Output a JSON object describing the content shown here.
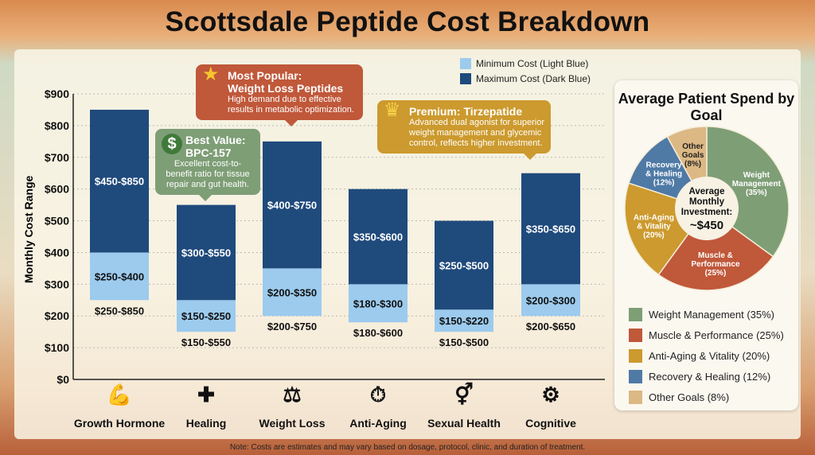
{
  "title": "Scottsdale Peptide Cost Breakdown",
  "note": "Note: Costs are estimates and may vary based on dosage, protocol, clinic, and duration of treatment.",
  "colors": {
    "min": "#9ccbee",
    "max": "#1f4a7c",
    "green": "#7e9e76",
    "red": "#c0583a",
    "gold": "#cc9a2e",
    "blue": "#4f7aa6",
    "tan": "#dcb884"
  },
  "chart_data": [
    {
      "type": "bar",
      "stacked": true,
      "ylabel": "Monthly Cost Range",
      "ylim": [
        0,
        900
      ],
      "yticks": [
        "$0",
        "$100",
        "$200",
        "$300",
        "$400",
        "$500",
        "$600",
        "$700",
        "$800",
        "$900"
      ],
      "grid": true,
      "legend": "top-right",
      "categories": [
        "Growth Hormone",
        "Healing",
        "Weight Loss",
        "Anti-Aging",
        "Sexual Health",
        "Cognitive"
      ],
      "icons": [
        "muscle-arm-icon",
        "bandage-icon",
        "scale-icon",
        "stopwatch-icon",
        "gender-symbols-icon",
        "brain-gear-icon"
      ],
      "series": [
        {
          "name": "Minimum Cost (Light Blue)",
          "low": [
            250,
            150,
            200,
            180,
            150,
            200
          ],
          "high": [
            400,
            250,
            350,
            300,
            220,
            300
          ],
          "labels": [
            "$250-$400",
            "$150-$250",
            "$200-$350",
            "$180-$300",
            "$150-$220",
            "$200-$300"
          ]
        },
        {
          "name": "Maximum Cost (Dark Blue)",
          "low": [
            400,
            250,
            350,
            300,
            220,
            300
          ],
          "high": [
            850,
            550,
            750,
            600,
            500,
            650
          ],
          "labels": [
            "$450-$850",
            "$300-$550",
            "$400-$750",
            "$350-$600",
            "$250-$500",
            "$350-$650"
          ]
        }
      ],
      "range_labels": [
        "$250-$850",
        "$150-$550",
        "$200-$750",
        "$180-$600",
        "$150-$500",
        "$200-$650"
      ]
    },
    {
      "type": "pie",
      "title": "Average Patient Spend by Goal",
      "center_text": [
        "Average",
        "Monthly",
        "Investment:",
        "~$450"
      ],
      "slices": [
        {
          "name": "Weight Management",
          "value": 35,
          "label": [
            "Weight",
            "Management",
            "(35%)"
          ],
          "legend": "Weight Management (35%)",
          "color": "#7e9e76"
        },
        {
          "name": "Muscle & Performance",
          "value": 25,
          "label": [
            "Muscle &",
            "Performance",
            "(25%)"
          ],
          "legend": "Muscle & Performance (25%)",
          "color": "#c0583a"
        },
        {
          "name": "Anti-Aging & Vitality",
          "value": 20,
          "label": [
            "Anti-Aging",
            "& Vitality",
            "(20%)"
          ],
          "legend": "Anti-Aging & Vitality (20%)",
          "color": "#cc9a2e"
        },
        {
          "name": "Recovery & Healing",
          "value": 12,
          "label": [
            "Recovery",
            "& Healing",
            "(12%)"
          ],
          "legend": "Recovery & Healing (12%)",
          "color": "#4f7aa6"
        },
        {
          "name": "Other Goals",
          "value": 8,
          "label": [
            "Other",
            "Goals",
            "(8%)"
          ],
          "legend": "Other Goals (8%)",
          "color": "#dcb884"
        }
      ]
    }
  ],
  "callouts": {
    "popular": {
      "title1": "Most Popular:",
      "title2": "Weight Loss Peptides",
      "text": "High demand due to effective results in metabolic optimization."
    },
    "value": {
      "title1": "Best Value:",
      "title2": "BPC-157",
      "text": "Excellent cost-to-benefit ratio for tissue repair and gut health."
    },
    "premium": {
      "title1": "Premium: Tirzepatide",
      "text": "Advanced dual agonist for superior weight management and glycemic control, reflects higher investment."
    }
  }
}
